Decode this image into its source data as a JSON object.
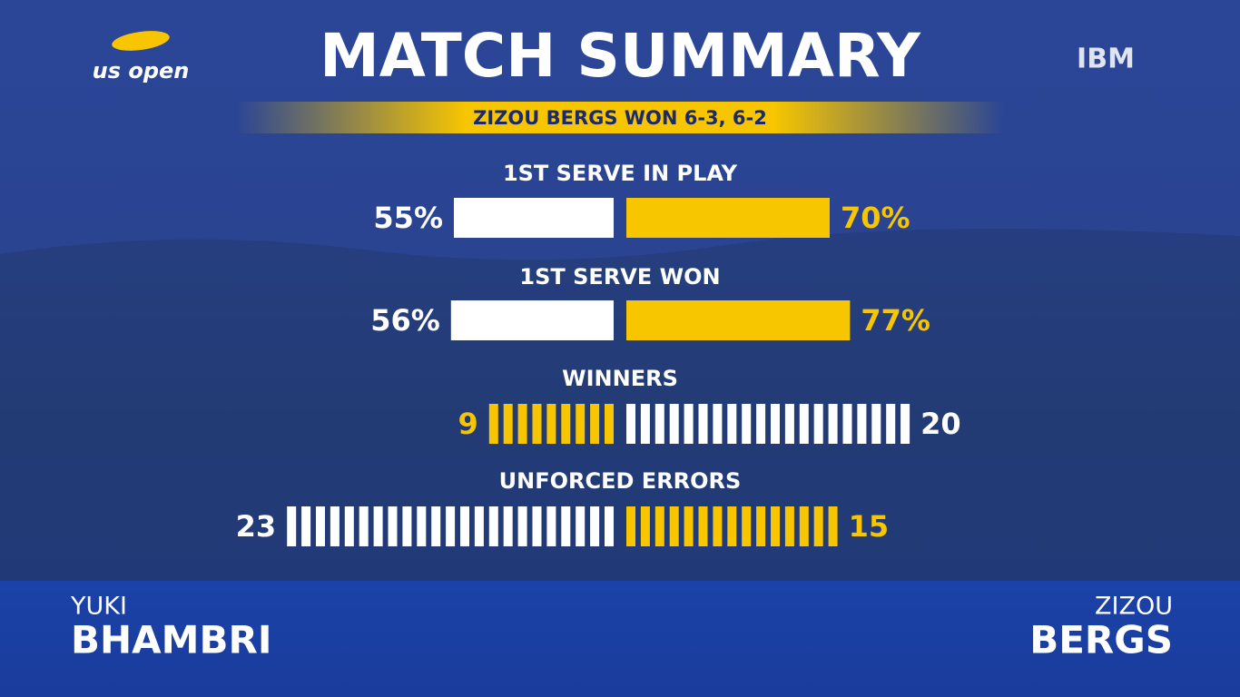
{
  "chart_data": {
    "type": "butterfly",
    "brand": "us open",
    "title": "MATCH SUMMARY",
    "sponsor": "IBM",
    "subtitle": "ZIZOU BERGS WON 6-3, 6-2",
    "players": [
      {
        "first": "YUKI",
        "last": "BHAMBRI"
      },
      {
        "first": "ZIZOU",
        "last": "BERGS"
      }
    ],
    "stats": [
      {
        "name": "1ST SERVE IN PLAY",
        "style": "bar",
        "values": [
          55,
          70
        ],
        "value_labels": [
          "55%",
          "70%"
        ],
        "colors": [
          "#ffffff",
          "#f7c600"
        ]
      },
      {
        "name": "1ST SERVE WON",
        "style": "bar",
        "values": [
          56,
          77
        ],
        "value_labels": [
          "56%",
          "77%"
        ],
        "colors": [
          "#ffffff",
          "#f7c600"
        ]
      },
      {
        "name": "WINNERS",
        "style": "count",
        "values": [
          9,
          20
        ],
        "colors": [
          "#f7c600",
          "#ffffff"
        ]
      },
      {
        "name": "UNFORCED ERRORS",
        "style": "count",
        "values": [
          23,
          15
        ],
        "colors": [
          "#ffffff",
          "#f7c600"
        ]
      }
    ]
  }
}
